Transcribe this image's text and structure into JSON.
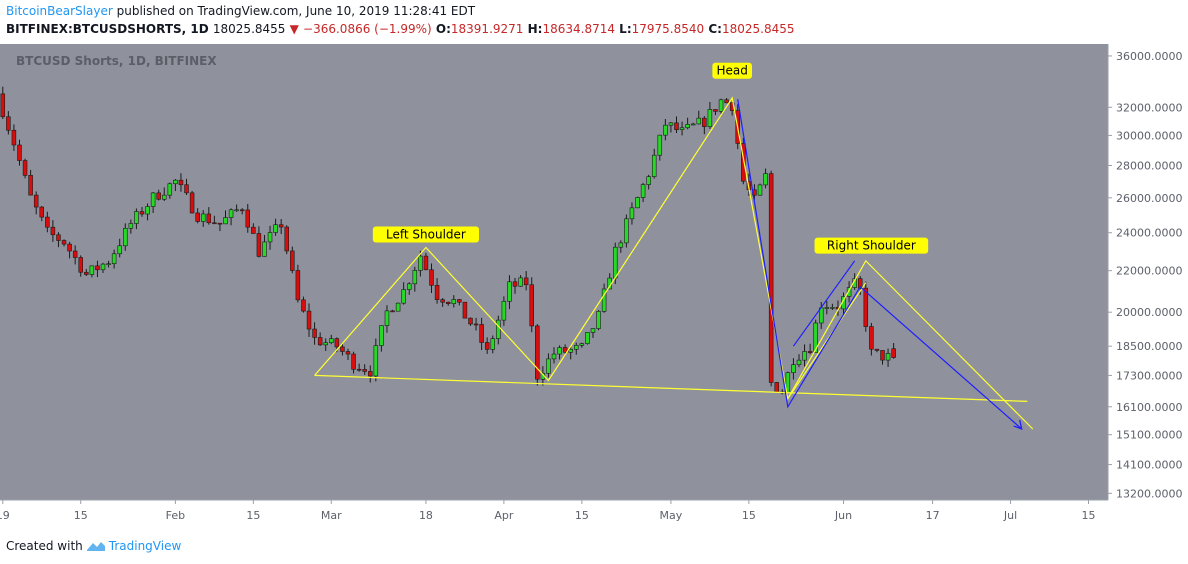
{
  "header": {
    "author": "BitcoinBearSlayer",
    "published_text": "published on TradingView.com, June 10, 2019 11:28:41 EDT",
    "symbol": "BITFINEX:BTCUSDSHORTS, 1D",
    "last_price": "18025.8455",
    "change": "−366.0866 (−1.99%)",
    "o_label": "O:",
    "o_value": "18391.9271",
    "h_label": "H:",
    "h_value": "18634.8714",
    "l_label": "L:",
    "l_value": "17975.8540",
    "c_label": "C:",
    "c_value": "18025.8455"
  },
  "footer": {
    "created_with": "Created with",
    "brand": "TradingView"
  },
  "colors": {
    "background": "#8f929c",
    "candle_up": "#27d827",
    "candle_down": "#d80e0e",
    "wick": "#1a1a1a",
    "pattern_yellow": "#ffff33",
    "pattern_blue": "#1f1fff",
    "label_bg": "#ffff00",
    "change_red": "#c62828"
  },
  "chart_data": {
    "type": "candlestick",
    "watermark": "BTCUSD Shorts, 1D, BITFINEX",
    "y_scale": "log",
    "ylim": [
      13000,
      37000
    ],
    "y_ticks": [
      "36000.0000",
      "32000.0000",
      "30000.0000",
      "28000.0000",
      "26000.0000",
      "24000.0000",
      "22000.0000",
      "20000.0000",
      "18500.0000",
      "17300.0000",
      "16100.0000",
      "15100.0000",
      "14100.0000",
      "13200.0000"
    ],
    "x_range": [
      "2019-01-01",
      "2019-07-19"
    ],
    "x_ticks": [
      {
        "date": "2019-01-01",
        "label": "19"
      },
      {
        "date": "2019-01-15",
        "label": "15"
      },
      {
        "date": "2019-02-01",
        "label": "Feb"
      },
      {
        "date": "2019-02-15",
        "label": "15"
      },
      {
        "date": "2019-03-01",
        "label": "Mar"
      },
      {
        "date": "2019-03-18",
        "label": "18"
      },
      {
        "date": "2019-04-01",
        "label": "Apr"
      },
      {
        "date": "2019-04-15",
        "label": "15"
      },
      {
        "date": "2019-05-01",
        "label": "May"
      },
      {
        "date": "2019-05-15",
        "label": "15"
      },
      {
        "date": "2019-06-01",
        "label": "Jun"
      },
      {
        "date": "2019-06-17",
        "label": "17"
      },
      {
        "date": "2019-07-01",
        "label": "Jul"
      },
      {
        "date": "2019-07-15",
        "label": "15"
      }
    ],
    "trend_anchors": [
      [
        "2019-01-01",
        33000
      ],
      [
        "2019-01-04",
        29500
      ],
      [
        "2019-01-07",
        26000
      ],
      [
        "2019-01-10",
        24000
      ],
      [
        "2019-01-13",
        23500
      ],
      [
        "2019-01-17",
        21800
      ],
      [
        "2019-01-21",
        22500
      ],
      [
        "2019-01-25",
        24500
      ],
      [
        "2019-01-29",
        26000
      ],
      [
        "2019-02-02",
        27000
      ],
      [
        "2019-02-06",
        25000
      ],
      [
        "2019-02-10",
        24500
      ],
      [
        "2019-02-14",
        25500
      ],
      [
        "2019-02-17",
        23000
      ],
      [
        "2019-02-21",
        24500
      ],
      [
        "2019-02-24",
        20500
      ],
      [
        "2019-02-27",
        18800
      ],
      [
        "2019-03-03",
        18500
      ],
      [
        "2019-03-06",
        17800
      ],
      [
        "2019-03-09",
        17500
      ],
      [
        "2019-03-12",
        20000
      ],
      [
        "2019-03-15",
        21000
      ],
      [
        "2019-03-18",
        22800
      ],
      [
        "2019-03-21",
        20800
      ],
      [
        "2019-03-24",
        20500
      ],
      [
        "2019-03-28",
        19200
      ],
      [
        "2019-03-30",
        18200
      ],
      [
        "2019-04-03",
        21200
      ],
      [
        "2019-04-06",
        21400
      ],
      [
        "2019-04-08",
        17300
      ],
      [
        "2019-04-11",
        18200
      ],
      [
        "2019-04-16",
        18400
      ],
      [
        "2019-04-19",
        19800
      ],
      [
        "2019-04-22",
        23000
      ],
      [
        "2019-04-25",
        25200
      ],
      [
        "2019-04-28",
        27500
      ],
      [
        "2019-05-01",
        30800
      ],
      [
        "2019-05-04",
        30200
      ],
      [
        "2019-05-08",
        31000
      ],
      [
        "2019-05-11",
        32500
      ],
      [
        "2019-05-13",
        32200
      ],
      [
        "2019-05-15",
        27000
      ],
      [
        "2019-05-17",
        25800
      ],
      [
        "2019-05-19",
        27300
      ],
      [
        "2019-05-20",
        17000
      ],
      [
        "2019-05-22",
        16700
      ],
      [
        "2019-05-24",
        18000
      ],
      [
        "2019-05-27",
        18500
      ],
      [
        "2019-05-29",
        20400
      ],
      [
        "2019-06-01",
        20300
      ],
      [
        "2019-06-04",
        21300
      ],
      [
        "2019-06-05",
        21000
      ],
      [
        "2019-06-07",
        18200
      ],
      [
        "2019-06-10",
        18026
      ]
    ],
    "last_candle": {
      "date": "2019-06-10",
      "open": 18391.9271,
      "high": 18634.8714,
      "low": 17975.854,
      "close": 18025.8455
    },
    "annotations": [
      {
        "text": "Left Shoulder",
        "date": "2019-03-18",
        "value": 23900
      },
      {
        "text": "Head",
        "date": "2019-05-12",
        "value": 34800
      },
      {
        "text": "Right Shoulder",
        "date": "2019-06-06",
        "value": 23300
      }
    ],
    "pattern_lines_yellow": [
      [
        [
          "2019-02-26",
          17300
        ],
        [
          "2019-03-18",
          23200
        ],
        [
          "2019-04-09",
          17100
        ],
        [
          "2019-05-12",
          32700
        ],
        [
          "2019-05-22",
          16400
        ],
        [
          "2019-06-05",
          22500
        ],
        [
          "2019-07-05",
          15300
        ]
      ],
      [
        [
          "2019-02-26",
          17300
        ],
        [
          "2019-07-04",
          16300
        ]
      ],
      [
        [
          "2019-05-22",
          16400
        ],
        [
          "2019-06-05",
          21400
        ]
      ]
    ],
    "pattern_lines_blue": [
      [
        [
          "2019-05-13",
          32600
        ],
        [
          "2019-05-22",
          16100
        ],
        [
          "2019-06-04",
          21200
        ],
        [
          "2019-07-03",
          15300
        ]
      ],
      [
        [
          "2019-05-23",
          18500
        ],
        [
          "2019-06-03",
          22500
        ]
      ]
    ],
    "arrowheads_blue": [
      {
        "date": "2019-07-03",
        "value": 15300
      }
    ]
  }
}
